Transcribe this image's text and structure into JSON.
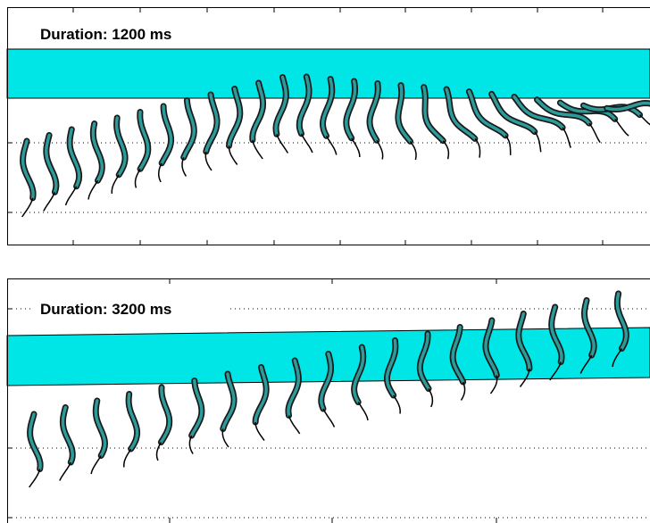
{
  "panels": [
    {
      "title": "Duration: 1200 ms"
    },
    {
      "title": "Duration: 3200 ms"
    }
  ]
}
